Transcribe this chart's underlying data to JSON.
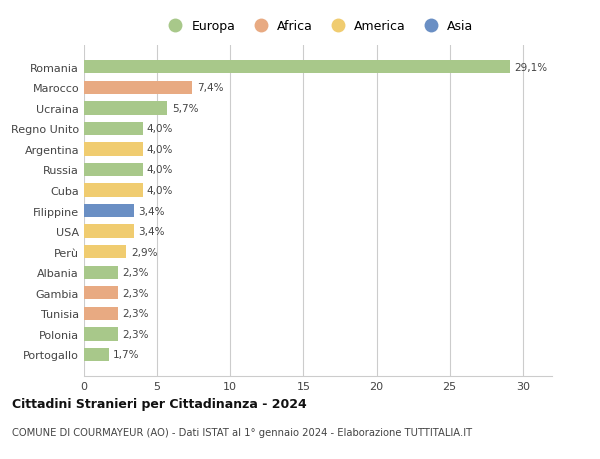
{
  "countries": [
    "Romania",
    "Marocco",
    "Ucraina",
    "Regno Unito",
    "Argentina",
    "Russia",
    "Cuba",
    "Filippine",
    "USA",
    "Perù",
    "Albania",
    "Gambia",
    "Tunisia",
    "Polonia",
    "Portogallo"
  ],
  "values": [
    29.1,
    7.4,
    5.7,
    4.0,
    4.0,
    4.0,
    4.0,
    3.4,
    3.4,
    2.9,
    2.3,
    2.3,
    2.3,
    2.3,
    1.7
  ],
  "labels": [
    "29,1%",
    "7,4%",
    "5,7%",
    "4,0%",
    "4,0%",
    "4,0%",
    "4,0%",
    "3,4%",
    "3,4%",
    "2,9%",
    "2,3%",
    "2,3%",
    "2,3%",
    "2,3%",
    "1,7%"
  ],
  "continents": [
    "Europa",
    "Africa",
    "Europa",
    "Europa",
    "America",
    "Europa",
    "America",
    "Asia",
    "America",
    "America",
    "Europa",
    "Africa",
    "Africa",
    "Europa",
    "Europa"
  ],
  "colors": {
    "Europa": "#a8c88a",
    "Africa": "#e8aa82",
    "America": "#f0cc70",
    "Asia": "#6a8fc4"
  },
  "legend_order": [
    "Europa",
    "Africa",
    "America",
    "Asia"
  ],
  "xlim": [
    0,
    32
  ],
  "xticks": [
    0,
    5,
    10,
    15,
    20,
    25,
    30
  ],
  "title": "Cittadini Stranieri per Cittadinanza - 2024",
  "subtitle": "COMUNE DI COURMAYEUR (AO) - Dati ISTAT al 1° gennaio 2024 - Elaborazione TUTTITALIA.IT",
  "bg_color": "#ffffff",
  "grid_color": "#cccccc"
}
